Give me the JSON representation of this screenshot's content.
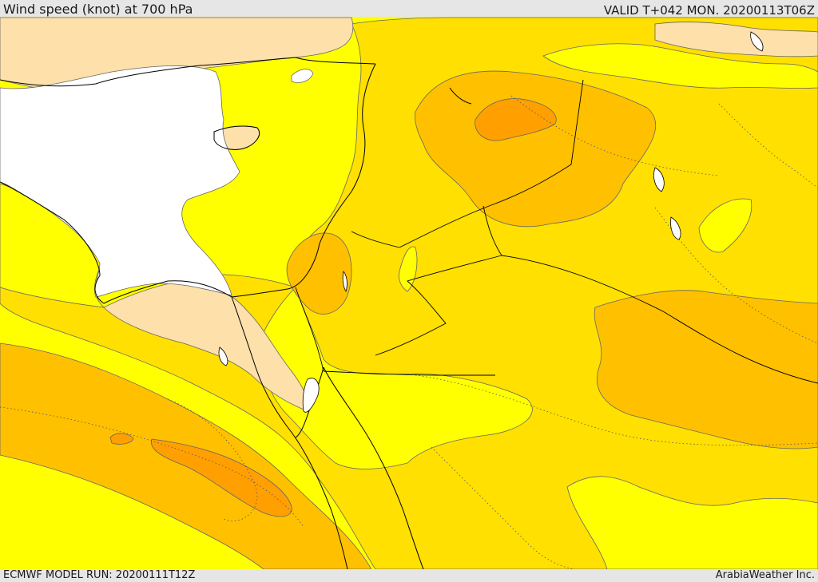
{
  "header": {
    "title": "Wind speed (knot) at 700 hPa",
    "valid": "VALID T+042 MON. 20200113T06Z"
  },
  "footer": {
    "model_run": "ECMWF MODEL RUN: 20200111T12Z",
    "credit": "ArabiaWeather Inc."
  },
  "map": {
    "colors": {
      "calm": "#ffffff",
      "very_light": "#fde0aa",
      "light": "#ffff00",
      "moderate": "#ffe000",
      "fresh": "#ffc000",
      "strong": "#ffa000",
      "contour": "#666666",
      "coast": "#000000"
    }
  }
}
